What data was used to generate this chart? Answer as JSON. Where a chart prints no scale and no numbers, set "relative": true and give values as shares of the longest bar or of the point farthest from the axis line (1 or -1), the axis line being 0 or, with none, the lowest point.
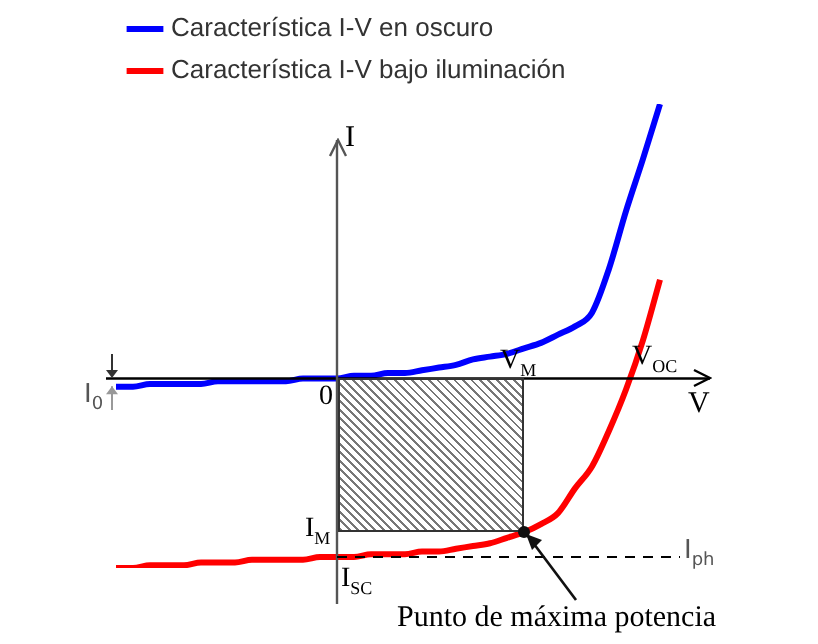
{
  "chart_data": {
    "type": "line",
    "relative": true,
    "legend": "top left",
    "marker": "none",
    "line_style": "solid",
    "xlabel": "V",
    "ylabel": "I",
    "categories": [
      null,
      null,
      null,
      null,
      null,
      null,
      null,
      null,
      null,
      null,
      null,
      null,
      null,
      null,
      null,
      null,
      null,
      null,
      null,
      null,
      null,
      null,
      null,
      null,
      null,
      null,
      null,
      null,
      null,
      null,
      null,
      null,
      null
    ],
    "series": [
      {
        "name": "Característica I-V en oscuro",
        "color": "#0000ff",
        "values": [
          -0.03,
          -0.03,
          -0.02,
          -0.02,
          -0.02,
          -0.02,
          -0.01,
          -0.01,
          -0.01,
          -0.01,
          -0.01,
          0,
          0,
          0,
          0.01,
          0.01,
          0.02,
          0.02,
          0.03,
          0.04,
          0.05,
          0.07,
          0.08,
          0.09,
          0.11,
          0.13,
          0.16,
          0.19,
          0.24,
          0.4,
          0.61,
          0.8,
          1
        ]
      },
      {
        "name": "Característica I-V bajo iluminación",
        "color": "#ff0000",
        "values": [
          -0.69,
          -0.69,
          -0.68,
          -0.68,
          -0.68,
          -0.67,
          -0.67,
          -0.67,
          -0.66,
          -0.66,
          -0.66,
          -0.66,
          -0.65,
          -0.65,
          -0.65,
          -0.64,
          -0.64,
          -0.64,
          -0.63,
          -0.63,
          -0.62,
          -0.61,
          -0.6,
          -0.58,
          -0.56,
          -0.53,
          -0.49,
          -0.4,
          -0.32,
          -0.19,
          -0.04,
          0.14,
          0.36
        ]
      }
    ],
    "ref_lines": [
      {
        "axis": "y",
        "value": -0.65,
        "label": "I$_{ph}$",
        "line_style": "dashed",
        "color": "#000000"
      }
    ],
    "annotations": [
      "0",
      "V$_{M}$",
      "V$_{OC}$",
      "I$_{M}$",
      "I$_{SC}$",
      "I$_{0}$",
      "Punto de máxima potencia"
    ]
  }
}
